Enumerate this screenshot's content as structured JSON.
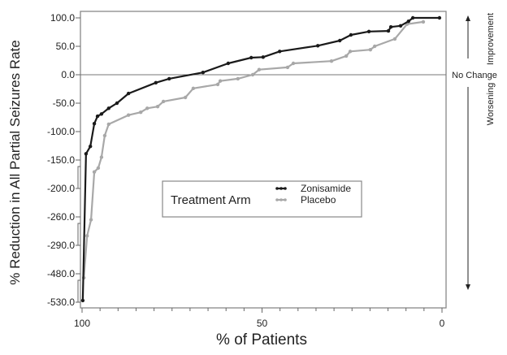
{
  "chart_data": {
    "type": "line",
    "title": "",
    "xlabel": "% of Patients",
    "ylabel": "% Reduction in All Partial Seizures Rate",
    "x_axis_reversed": true,
    "xlim": [
      100,
      0
    ],
    "x_ticks": [
      "100",
      "50",
      "0"
    ],
    "x_tick_values": [
      100,
      50,
      0
    ],
    "x_minor_tick_step": 5,
    "y_axis_broken": true,
    "y_ticks": [
      "100.0",
      "50.0",
      "0.0",
      "-50.0",
      "-100.0",
      "-150.0",
      "-200.0",
      "-260.0",
      "-290.0",
      "-480.0",
      "-530.0"
    ],
    "y_tick_values": [
      100,
      50,
      0,
      -50,
      -100,
      -150,
      -200,
      -260,
      -290,
      -480,
      -530
    ],
    "reference_line": {
      "y": 0,
      "label": "No Change"
    },
    "right_annotations": {
      "up": "Improvement",
      "down": "Worsening"
    },
    "legend": {
      "title": "Treatment Arm",
      "placement": "center"
    },
    "grid": false,
    "series": [
      {
        "name": "Zonisamide",
        "color": "#1a1a1a",
        "x": [
          99.8,
          98.9,
          97.7,
          96.6,
          95.7,
          94.6,
          92.6,
          90.3,
          87.1,
          79.5,
          75.8,
          66.4,
          59.4,
          53.0,
          49.7,
          45.1,
          34.5,
          28.4,
          25.3,
          20.3,
          14.9,
          14.2,
          11.5,
          9.3,
          8.1,
          0.7
        ],
        "y": [
          -527,
          -139,
          -126,
          -86,
          -73,
          -69,
          -59,
          -50,
          -33,
          -14,
          -7,
          4,
          20,
          30,
          31,
          41,
          51,
          60,
          70,
          76,
          77,
          84,
          86,
          94,
          100,
          100
        ]
      },
      {
        "name": "Placebo",
        "color": "#a8a8a8",
        "x": [
          99.5,
          98.6,
          97.5,
          96.6,
          95.5,
          94.6,
          93.7,
          92.6,
          87.1,
          83.7,
          81.9,
          79.0,
          77.4,
          71.3,
          69.1,
          62.3,
          61.6,
          56.7,
          52.6,
          50.8,
          42.9,
          41.3,
          30.7,
          26.6,
          25.5,
          19.9,
          18.7,
          13.1,
          9.7,
          5.2
        ],
        "y": [
          -487,
          -280,
          -263,
          -171,
          -164,
          -145,
          -107,
          -87,
          -71,
          -66,
          -59,
          -56,
          -47,
          -40,
          -24,
          -17,
          -11,
          -7,
          0,
          9,
          13,
          20,
          24,
          33,
          41,
          44,
          50,
          63,
          89,
          93
        ]
      }
    ]
  }
}
